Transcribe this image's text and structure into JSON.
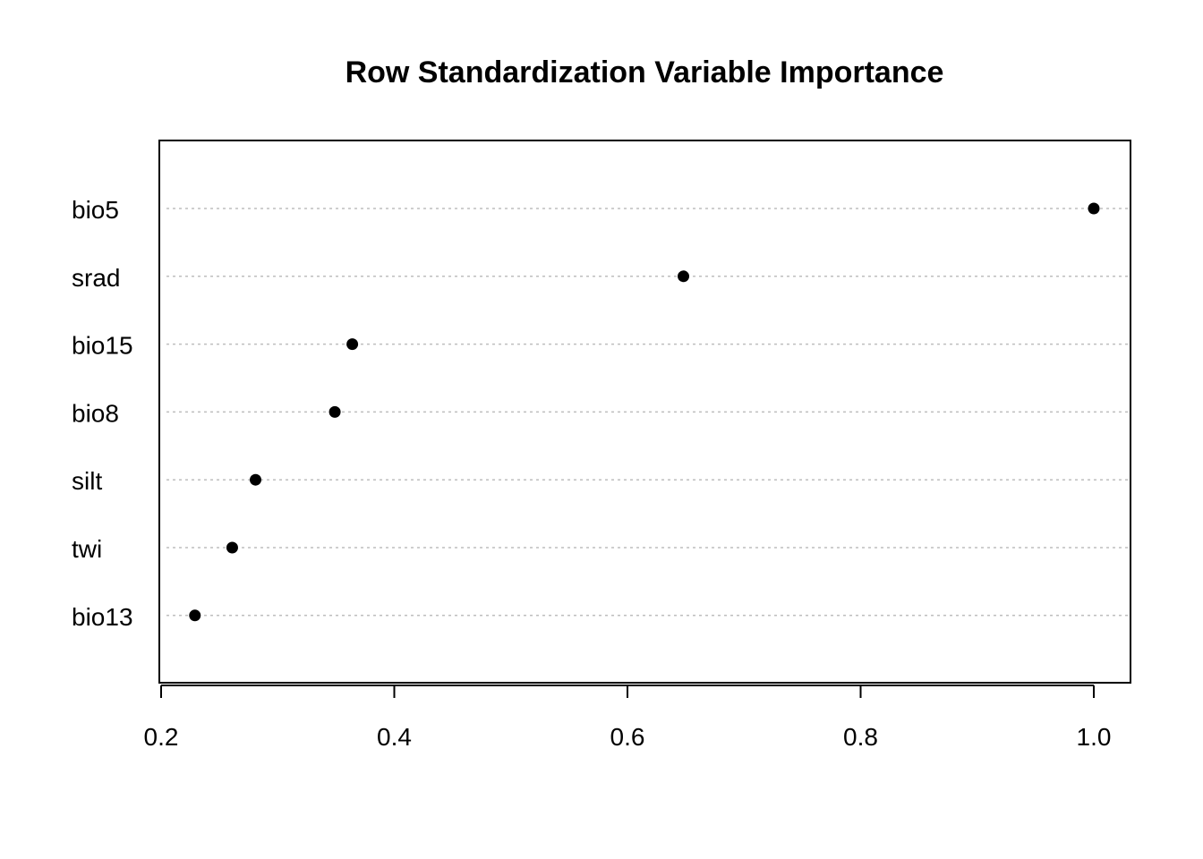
{
  "chart_data": {
    "type": "dotchart",
    "title": "Row Standardization Variable Importance",
    "xlabel": "",
    "ylabel": "",
    "categories": [
      "bio5",
      "srad",
      "bio15",
      "bio8",
      "silt",
      "twi",
      "bio13"
    ],
    "values": [
      1.0,
      0.648,
      0.364,
      0.349,
      0.281,
      0.261,
      0.229
    ],
    "xlim": [
      0.2,
      1.03
    ],
    "xticks": [
      0.2,
      0.4,
      0.6,
      0.8,
      1.0
    ],
    "xtick_labels": [
      "0.2",
      "0.4",
      "0.6",
      "0.8",
      "1.0"
    ],
    "grid": "dotted horizontal per category",
    "point_color": "#000000"
  }
}
